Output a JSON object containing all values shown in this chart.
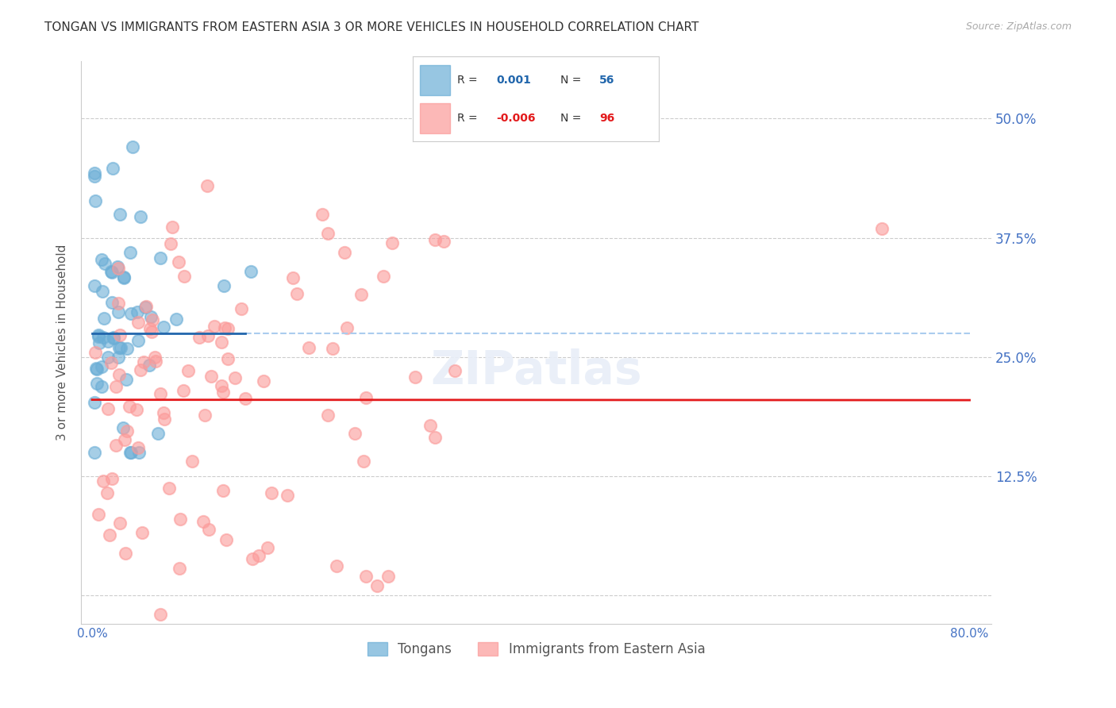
{
  "title": "TONGAN VS IMMIGRANTS FROM EASTERN ASIA 3 OR MORE VEHICLES IN HOUSEHOLD CORRELATION CHART",
  "source": "Source: ZipAtlas.com",
  "ylabel": "3 or more Vehicles in Household",
  "xlim": [
    -1,
    82
  ],
  "ylim": [
    -3,
    56
  ],
  "yticks": [
    0,
    12.5,
    25.0,
    37.5,
    50.0
  ],
  "xtick_pos": [
    0,
    10,
    20,
    30,
    40,
    50,
    60,
    70,
    80
  ],
  "xtick_labels": [
    "0.0%",
    "",
    "",
    "",
    "",
    "",
    "",
    "",
    "80.0%"
  ],
  "blue_color": "#6baed6",
  "pink_color": "#fb9a99",
  "blue_line_color": "#2166ac",
  "pink_line_color": "#e31a1c",
  "blue_R": "0.001",
  "blue_N": "56",
  "pink_R": "-0.006",
  "pink_N": "96",
  "blue_mean_y": 27.5,
  "pink_mean_y": 20.5,
  "background_color": "#ffffff",
  "grid_color": "#cccccc",
  "title_color": "#333333",
  "tick_color": "#4472c4",
  "right_tick_labels": [
    "",
    "12.5%",
    "25.0%",
    "37.5%",
    "50.0%"
  ],
  "watermark": "ZIPatlas",
  "legend_label_blue": "Tongans",
  "legend_label_pink": "Immigrants from Eastern Asia"
}
